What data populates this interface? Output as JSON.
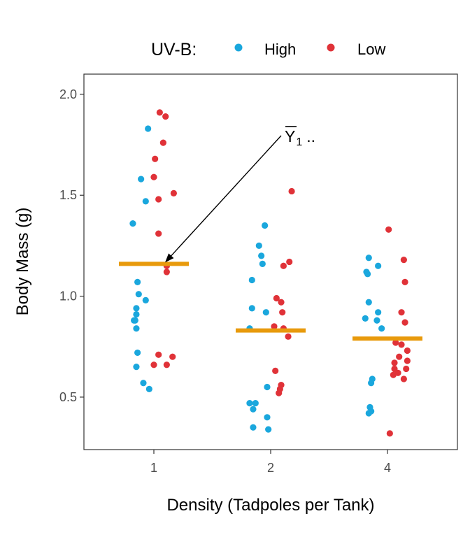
{
  "chart_data": {
    "type": "scatter",
    "xlabel": "Density (Tadpoles per Tank)",
    "ylabel": "Body Mass (g)",
    "categories": [
      "1",
      "2",
      "4"
    ],
    "ylim": [
      0.24,
      2.1
    ],
    "yticks": [
      0.5,
      1.0,
      1.5,
      2.0
    ],
    "ytick_labels": [
      "0.5",
      "1.0",
      "1.5",
      "2.0"
    ],
    "grid": false,
    "legend": {
      "title": "UV-B:",
      "position": "top",
      "entries": [
        {
          "label": "High",
          "color": "#1aa7dd"
        },
        {
          "label": "Low",
          "color": "#e03238"
        }
      ]
    },
    "series": [
      {
        "name": "High",
        "color": "#1aa7dd",
        "points": [
          {
            "x": 0.95,
            "y": 1.83
          },
          {
            "x": 0.89,
            "y": 1.58
          },
          {
            "x": 0.93,
            "y": 1.47
          },
          {
            "x": 0.82,
            "y": 1.36
          },
          {
            "x": 0.86,
            "y": 1.07
          },
          {
            "x": 0.87,
            "y": 1.01
          },
          {
            "x": 0.93,
            "y": 0.98
          },
          {
            "x": 0.85,
            "y": 0.94
          },
          {
            "x": 0.85,
            "y": 0.91
          },
          {
            "x": 0.84,
            "y": 0.88
          },
          {
            "x": 0.83,
            "y": 0.88
          },
          {
            "x": 0.85,
            "y": 0.84
          },
          {
            "x": 0.86,
            "y": 0.72
          },
          {
            "x": 0.85,
            "y": 0.65
          },
          {
            "x": 0.91,
            "y": 0.57
          },
          {
            "x": 0.96,
            "y": 0.54
          },
          {
            "x": 1.95,
            "y": 1.35
          },
          {
            "x": 1.9,
            "y": 1.25
          },
          {
            "x": 1.92,
            "y": 1.2
          },
          {
            "x": 1.93,
            "y": 1.16
          },
          {
            "x": 1.84,
            "y": 1.08
          },
          {
            "x": 1.84,
            "y": 0.94
          },
          {
            "x": 1.96,
            "y": 0.92
          },
          {
            "x": 1.82,
            "y": 0.84
          },
          {
            "x": 1.97,
            "y": 0.55
          },
          {
            "x": 1.82,
            "y": 0.47
          },
          {
            "x": 1.87,
            "y": 0.47
          },
          {
            "x": 1.85,
            "y": 0.44
          },
          {
            "x": 1.97,
            "y": 0.4
          },
          {
            "x": 1.85,
            "y": 0.35
          },
          {
            "x": 1.98,
            "y": 0.34
          },
          {
            "x": 2.84,
            "y": 1.19
          },
          {
            "x": 2.92,
            "y": 1.15
          },
          {
            "x": 2.82,
            "y": 1.12
          },
          {
            "x": 2.83,
            "y": 1.11
          },
          {
            "x": 2.84,
            "y": 0.97
          },
          {
            "x": 2.92,
            "y": 0.92
          },
          {
            "x": 2.81,
            "y": 0.89
          },
          {
            "x": 2.91,
            "y": 0.88
          },
          {
            "x": 2.95,
            "y": 0.84
          },
          {
            "x": 2.87,
            "y": 0.59
          },
          {
            "x": 2.86,
            "y": 0.57
          },
          {
            "x": 2.85,
            "y": 0.45
          },
          {
            "x": 2.86,
            "y": 0.43
          },
          {
            "x": 2.84,
            "y": 0.42
          }
        ]
      },
      {
        "name": "Low",
        "color": "#e03238",
        "points": [
          {
            "x": 1.05,
            "y": 1.91
          },
          {
            "x": 1.1,
            "y": 1.89
          },
          {
            "x": 1.08,
            "y": 1.76
          },
          {
            "x": 1.01,
            "y": 1.68
          },
          {
            "x": 1.0,
            "y": 1.59
          },
          {
            "x": 1.17,
            "y": 1.51
          },
          {
            "x": 1.04,
            "y": 1.48
          },
          {
            "x": 1.04,
            "y": 1.31
          },
          {
            "x": 1.11,
            "y": 1.15
          },
          {
            "x": 1.11,
            "y": 1.12
          },
          {
            "x": 1.04,
            "y": 0.71
          },
          {
            "x": 1.16,
            "y": 0.7
          },
          {
            "x": 1.0,
            "y": 0.66
          },
          {
            "x": 1.11,
            "y": 0.66
          },
          {
            "x": 2.18,
            "y": 1.52
          },
          {
            "x": 2.16,
            "y": 1.17
          },
          {
            "x": 2.11,
            "y": 1.15
          },
          {
            "x": 2.05,
            "y": 0.99
          },
          {
            "x": 2.09,
            "y": 0.97
          },
          {
            "x": 2.1,
            "y": 0.92
          },
          {
            "x": 2.03,
            "y": 0.85
          },
          {
            "x": 2.11,
            "y": 0.84
          },
          {
            "x": 2.15,
            "y": 0.8
          },
          {
            "x": 2.04,
            "y": 0.63
          },
          {
            "x": 2.09,
            "y": 0.56
          },
          {
            "x": 2.08,
            "y": 0.54
          },
          {
            "x": 2.07,
            "y": 0.52
          },
          {
            "x": 3.01,
            "y": 1.33
          },
          {
            "x": 3.14,
            "y": 1.18
          },
          {
            "x": 3.15,
            "y": 1.07
          },
          {
            "x": 3.12,
            "y": 0.92
          },
          {
            "x": 3.15,
            "y": 0.87
          },
          {
            "x": 3.07,
            "y": 0.77
          },
          {
            "x": 3.12,
            "y": 0.76
          },
          {
            "x": 3.17,
            "y": 0.73
          },
          {
            "x": 3.1,
            "y": 0.7
          },
          {
            "x": 3.17,
            "y": 0.68
          },
          {
            "x": 3.06,
            "y": 0.67
          },
          {
            "x": 3.16,
            "y": 0.64
          },
          {
            "x": 3.06,
            "y": 0.64
          },
          {
            "x": 3.05,
            "y": 0.61
          },
          {
            "x": 3.09,
            "y": 0.62
          },
          {
            "x": 3.14,
            "y": 0.59
          },
          {
            "x": 3.02,
            "y": 0.32
          }
        ]
      }
    ],
    "means": {
      "color": "#e89a0c",
      "values": [
        {
          "category": "1",
          "value": 1.16
        },
        {
          "category": "2",
          "value": 0.83
        },
        {
          "category": "4",
          "value": 0.79
        }
      ]
    },
    "annotation": {
      "text": "Y",
      "subscript": "1",
      "suffix": "..",
      "points_to": {
        "category": "1",
        "value": 1.16
      }
    }
  }
}
